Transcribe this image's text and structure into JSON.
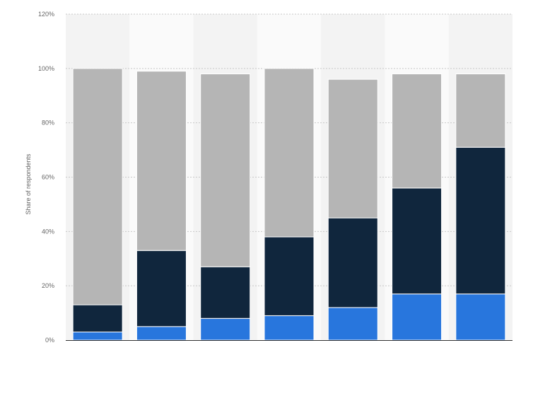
{
  "chart_data": {
    "type": "bar",
    "stacked": true,
    "categories": [
      "",
      "",
      "",
      "",
      "",
      "",
      ""
    ],
    "ylabel": "Share of respondents",
    "ylim": [
      0,
      120
    ],
    "yticks": [
      "0%",
      "20%",
      "40%",
      "60%",
      "80%",
      "100%",
      "120%"
    ],
    "grid": true,
    "series": [
      {
        "color": "#2876dd",
        "values": [
          3,
          5,
          8,
          9,
          12,
          17,
          17
        ]
      },
      {
        "color": "#10263d",
        "values": [
          10,
          28,
          19,
          29,
          33,
          39,
          54
        ]
      },
      {
        "color": "#b5b5b5",
        "values": [
          87,
          66,
          71,
          62,
          51,
          42,
          27
        ]
      }
    ]
  }
}
